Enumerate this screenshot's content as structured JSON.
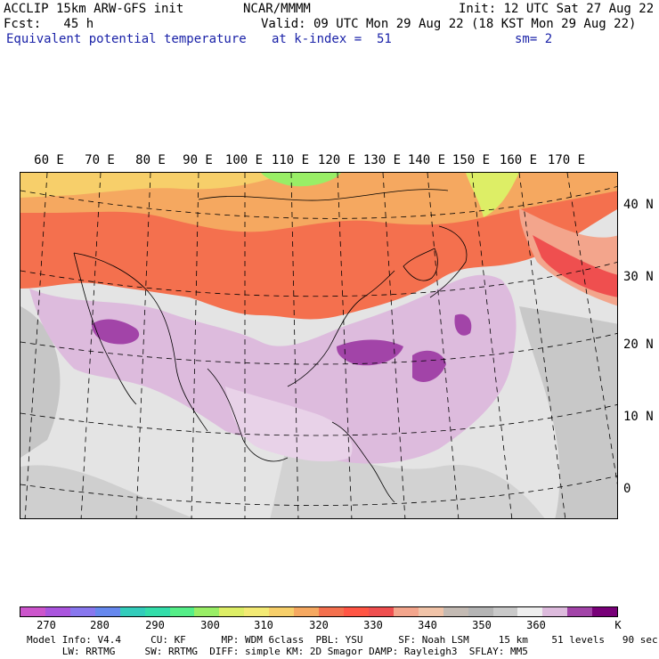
{
  "header": {
    "model_name": "ACCLIP 15km ARW-GFS init",
    "org": "NCAR/MMMM",
    "init": "Init: 12 UTC Sat 27 Aug 22",
    "fcst": "Fcst:   45 h",
    "valid": "Valid: 09 UTC Mon 29 Aug 22 (18 KST Mon 29 Aug 22)",
    "field": "Equivalent potential temperature",
    "level": "at k-index =  51",
    "smooth": "sm= 2"
  },
  "map": {
    "longitude_labels": [
      "60 E",
      "70 E",
      "80 E",
      "90 E",
      "100 E",
      "110 E",
      "120 E",
      "130 E",
      "140 E",
      "150 E",
      "160 E",
      "170 E"
    ],
    "latitude_labels": [
      "40 N",
      "30 N",
      "20 N",
      "10 N",
      "0"
    ]
  },
  "legend": {
    "colors": [
      "#cc55cc",
      "#aa55dd",
      "#8877ee",
      "#6688ee",
      "#33ccbb",
      "#33ddaa",
      "#55ee88",
      "#99ee66",
      "#ddee66",
      "#f3ea74",
      "#f7cf6a",
      "#f5a860",
      "#f4704e",
      "#ff5544",
      "#ef4f4f",
      "#f3a58c",
      "#f0c3a8",
      "#c3bab3",
      "#b4b4b4",
      "#c9c9c9",
      "#eeeeee",
      "#ddbbdd",
      "#a244a8",
      "#780078"
    ],
    "tick_labels": [
      "270",
      "280",
      "290",
      "300",
      "310",
      "320",
      "330",
      "340",
      "350",
      "360",
      "K"
    ]
  },
  "footer": {
    "line1": "Model Info: V4.4     CU: KF      MP: WDM 6class  PBL: YSU      SF: Noah LSM     15 km    51 levels   90 sec",
    "line2": "      LW: RRTMG     SW: RRTMG  DIFF: simple KM: 2D Smagor DAMP: Rayleigh3  SFLAY: MM5"
  }
}
